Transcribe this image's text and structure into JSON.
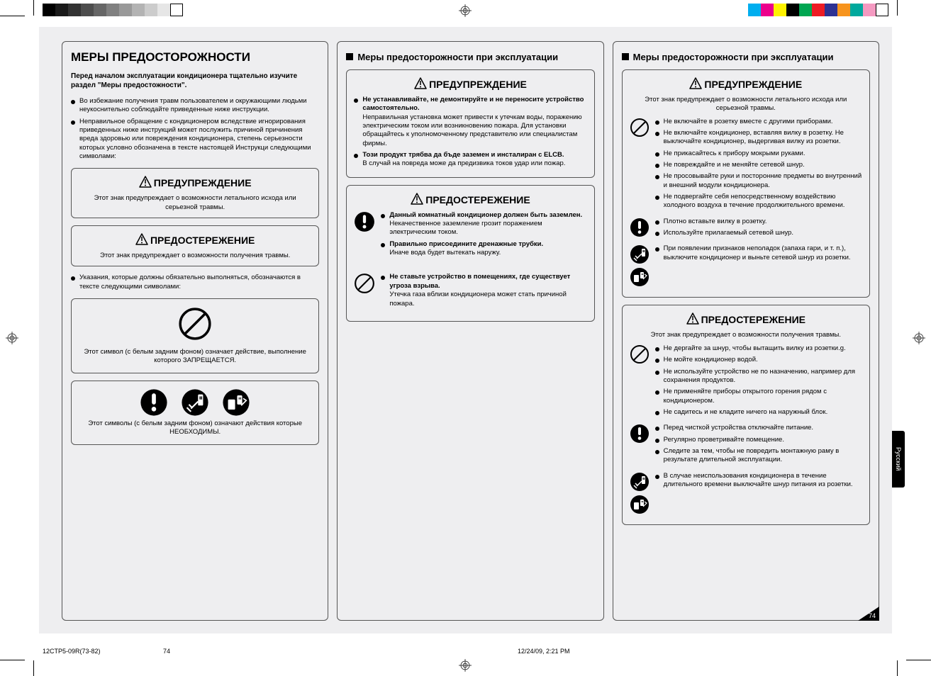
{
  "footer": {
    "doc_id": "12CTP5-09R(73-82)",
    "page": "74",
    "date": "12/24/09, 2:21 PM",
    "corner": "74",
    "tab": "Русский"
  },
  "gray_swatches": [
    "#000000",
    "#1a1a1a",
    "#333333",
    "#4d4d4d",
    "#666666",
    "#808080",
    "#999999",
    "#b3b3b3",
    "#cccccc",
    "#e6e6e6",
    "#ffffff"
  ],
  "rgb_swatches": [
    "#00aeef",
    "#ec008c",
    "#fff200",
    "#000000",
    "#00a651",
    "#ed1c24",
    "#2e3192",
    "#f7941d",
    "#00a99d",
    "#f49ac1",
    "#ffffff"
  ],
  "col1": {
    "title": "МЕРЫ ПРЕДОСТОРОЖНОСТИ",
    "intro": "Перед началом эксплуатации кондиционера тщательно изучите раздел \"Меры предостожности\".",
    "bullets_top": [
      "Во избежание получения травм пользователем и окружающими людьми неукоснительно соблюдайте приведенные ниже инструкции.",
      "Неправильное обращение с кондиционером вследствие игнорирования приведенных ниже инструкций может послужить причиной причинения вреда здоровью или повреждения кондиционера, степень серьезности которых условно обозначена в тексте настоящей Инструкци следующими символами:"
    ],
    "warn1": {
      "title": "ПРЕДУПРЕЖДЕНИЕ",
      "desc": "Этот знак предупреждает о возможности летального исхода или серьезной травмы."
    },
    "warn2": {
      "title": "ПРЕДОСТЕРЕЖЕНИЕ",
      "desc": "Этот знак предупреждает о возможности получения травмы."
    },
    "bullet_mid": "Указания, которые должны обязательно выполняться, обозначаются в тексте следующими символами:",
    "sym1": "Этот символ (с белым задним фоном) означает действие, выполнение которого ЗАПРЕЩАЕТСЯ.",
    "sym2": "Этот символы (с белым задним фоном) означают действия которые НЕОБХОДИМЫ."
  },
  "col2": {
    "heading": "Меры предосторожности при эксплуатации",
    "warn_title": "ПРЕДУПРЕЖДЕНИЕ",
    "warn_bullets": [
      {
        "bold": "Не устанавливайте, не демонтируйте и не переносите устройство самостоятельно.",
        "text": "Неправильная установка может привести к утечкам воды, поражению электрическим током или возникновению пожара. Для установки обращайтесь к уполномоченному представителю или специалистам фирмы."
      },
      {
        "bold": "Този продукт трябва да бъде заземен и инсталиран с ELCB.",
        "text": "В случай на повреда може да предизвика токов удар или пожар."
      }
    ],
    "caution_title": "ПРЕДОСТЕРЕЖЕНИЕ",
    "caution_group1": [
      {
        "bold": "Данный комнатный кондиционер должен быть заземлен.",
        "text": "Некачественное заземление грозит поражением электрическим током."
      },
      {
        "bold": "Правильно присоедините дренажные трубки.",
        "text": "Иначе вода будет вытекать наружу."
      }
    ],
    "caution_group2": [
      {
        "bold": "Не ставьте устройство в помещениях, где существует угроза взрыва.",
        "text": "Утечка газа вблизи кондиционера может стать причиной пожара."
      }
    ]
  },
  "col3": {
    "heading": "Меры предосторожности при эксплуатации",
    "warn": {
      "title": "ПРЕДУПРЕЖДЕНИЕ",
      "desc": "Этот знак предупреждает о возможности летального исхода или серьезной травмы."
    },
    "g1": [
      "Не включайте в розетку вместе с другими приборами.",
      "Не включайте кондиционер, вставляя вилку в розетку. Не выключайте кондиционер, выдергивая вилку из розетки.",
      "Не прикасайтесь к прибору мокрыми руками.",
      "Не повреждайте и не меняйте сетевой шнур.",
      "Не просовывайте руки и посторонние предметы во внутренний и внешний модули кондиционера.",
      "Не подвергайте себя непосредственному воздействию холодного воздуха в течение продолжительного времени."
    ],
    "g2": [
      "Плотно вставьте вилку в розетку.",
      "Используйте прилагаемый сетевой шнур."
    ],
    "g3": [
      "При появлении признаков неполадок (запаха гари, и т. п.), выключите кондиционер и выньте сетевой шнур из розетки."
    ],
    "caution": {
      "title": "ПРЕДОСТЕРЕЖЕНИЕ",
      "desc": "Этот знак предупреждает о возможности получения травмы."
    },
    "g4": [
      "Не дергайте за шнур, чтобы вытащить вилку из розетки.g.",
      "Не мойте кондиционер водой.",
      "Не используйте устройство не по назначению, например для сохранения продуктов.",
      "Не применяйте приборы открытого горения рядом с кондиционером.",
      "Не садитесь и не кладите ничего на наружный блок."
    ],
    "g5": [
      "Перед чисткой устройства отключайте питание.",
      "Регулярно проветривайте помещение.",
      "Следите за тем, чтобы  не повредить монтажную раму в результате длительной эксплуатации."
    ],
    "g6": [
      "В случае неиспользования кондиционера в течение длительного времени выключайте шнур питания из розетки."
    ]
  }
}
